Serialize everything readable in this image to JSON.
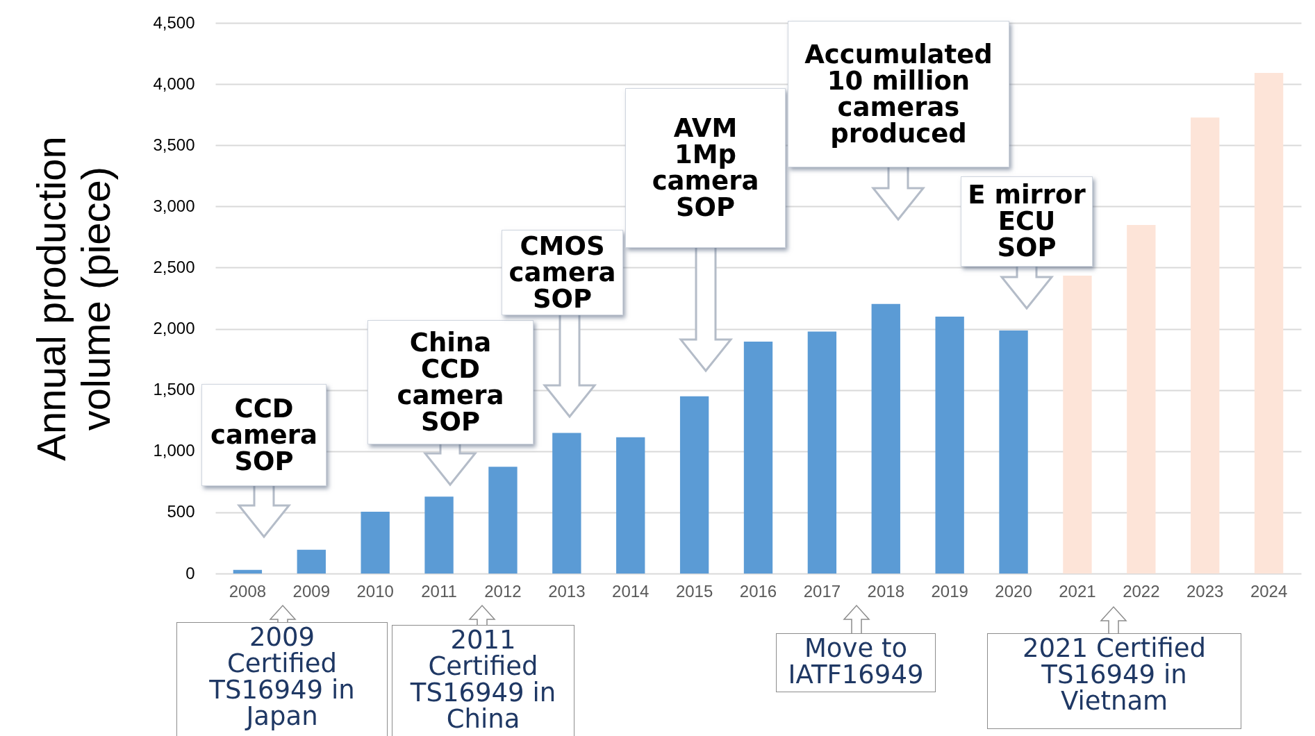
{
  "chart_data": {
    "type": "bar",
    "ylabel": "Annual production volume (piece)",
    "categories": [
      "2008",
      "2009",
      "2010",
      "2011",
      "2012",
      "2013",
      "2014",
      "2015",
      "2016",
      "2017",
      "2018",
      "2019",
      "2020",
      "2021",
      "2022",
      "2023",
      "2024"
    ],
    "values": [
      30,
      195,
      505,
      628,
      872,
      1149,
      1113,
      1449,
      1896,
      1977,
      2203,
      2100,
      1986,
      2435,
      2849,
      3727,
      4092
    ],
    "colors": [
      "#5b9bd5",
      "#5b9bd5",
      "#5b9bd5",
      "#5b9bd5",
      "#5b9bd5",
      "#5b9bd5",
      "#5b9bd5",
      "#5b9bd5",
      "#5b9bd5",
      "#5b9bd5",
      "#5b9bd5",
      "#5b9bd5",
      "#5b9bd5",
      "#fde4d8",
      "#fde4d8",
      "#fde4d8",
      "#fde4d8"
    ],
    "ylim": [
      0,
      4500
    ],
    "yticks": [
      0,
      500,
      {
        "value": 1000,
        "label": "1,000"
      },
      {
        "value": 1500,
        "label": "1,500"
      },
      {
        "value": 2000,
        "label": "2,000"
      },
      {
        "value": 2500,
        "label": "2,500"
      },
      {
        "value": 3000,
        "label": "3,000"
      },
      {
        "value": 3500,
        "label": "3,500"
      },
      {
        "value": 4000,
        "label": "4,000"
      },
      {
        "value": 4500,
        "label": "4,500"
      }
    ],
    "grid": "y",
    "annotations": [
      "CCD camera SOP",
      "China CCD camera SOP",
      "CMOS camera SOP",
      "AVM 1Mp camera SOP",
      "Accumulated 10 million cameras produced",
      "E mirror ECU SOP",
      "2009 Certified TS16949 in Japan",
      "2011 Certified TS16949 in China",
      "Move to IATF16949",
      "2021 Certified TS16949 in Vietnam"
    ]
  }
}
